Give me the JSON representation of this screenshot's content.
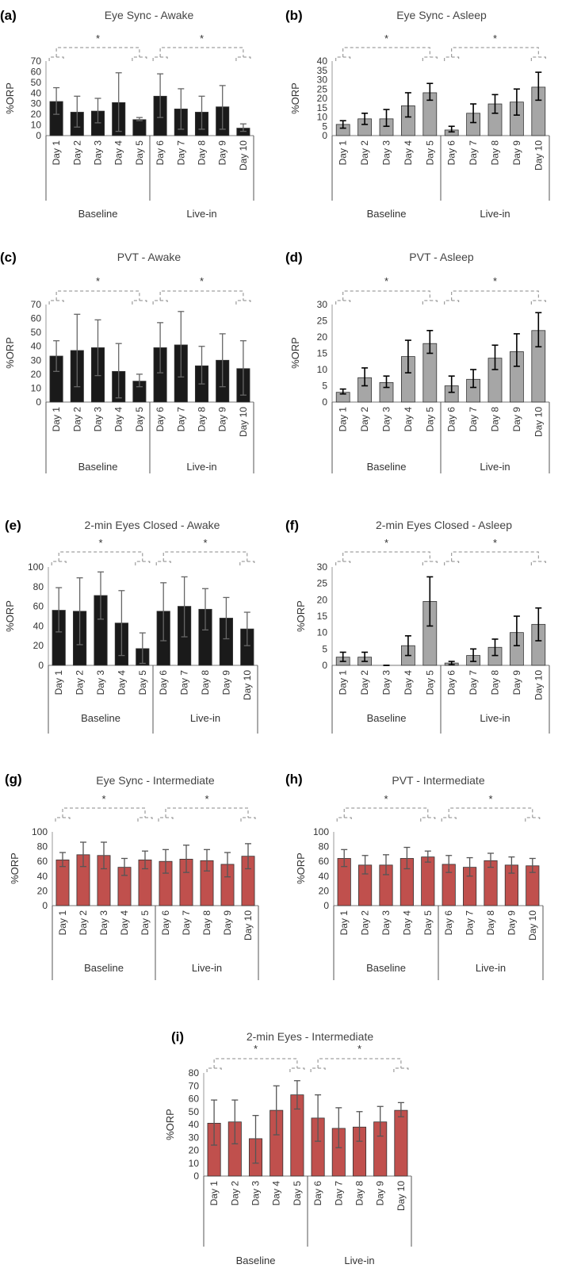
{
  "chart_data": [
    {
      "type": "bar",
      "panel": "(a)",
      "title": "Eye Sync - Awake",
      "ylabel": "%ORP",
      "ylim": [
        0,
        70
      ],
      "yticks": [
        0,
        10,
        20,
        30,
        40,
        50,
        60,
        70
      ],
      "categories": [
        "Day 1",
        "Day 2",
        "Day 3",
        "Day 4",
        "Day 5",
        "Day 6",
        "Day 7",
        "Day 8",
        "Day 9",
        "Day 10"
      ],
      "groups": [
        "Baseline",
        "Live-in"
      ],
      "values": [
        32,
        22,
        23,
        31,
        15,
        37,
        25,
        22,
        27,
        7
      ],
      "err_low": [
        20,
        8,
        12,
        4,
        14,
        17,
        6,
        6,
        6,
        4
      ],
      "err_high": [
        45,
        37,
        35,
        59,
        17,
        58,
        44,
        37,
        47,
        11
      ],
      "bar_color": "#1a1a1a",
      "error_color": "#666666",
      "significance": [
        "*",
        "*"
      ]
    },
    {
      "type": "bar",
      "panel": "(b)",
      "title": "Eye Sync - Asleep",
      "ylabel": "%ORP",
      "ylim": [
        0,
        40
      ],
      "yticks": [
        0,
        5,
        10,
        15,
        20,
        25,
        30,
        35,
        40
      ],
      "categories": [
        "Day 1",
        "Day 2",
        "Day 3",
        "Day 4",
        "Day 5",
        "Day 6",
        "Day 7",
        "Day 8",
        "Day 9",
        "Day 10"
      ],
      "groups": [
        "Baseline",
        "Live-in"
      ],
      "values": [
        6,
        9,
        9,
        16,
        23,
        3,
        12,
        17,
        18,
        26
      ],
      "err_low": [
        4,
        6,
        5,
        10,
        19,
        2,
        7,
        12,
        11,
        19
      ],
      "err_high": [
        8,
        12,
        14,
        23,
        28,
        5,
        17,
        22,
        25,
        34
      ],
      "bar_color": "#a6a6a6",
      "error_color": "#000000",
      "significance": [
        "*",
        "*"
      ]
    },
    {
      "type": "bar",
      "panel": "(c)",
      "title": "PVT - Awake",
      "ylabel": "%ORP",
      "ylim": [
        0,
        70
      ],
      "yticks": [
        0,
        10,
        20,
        30,
        40,
        50,
        60,
        70
      ],
      "categories": [
        "Day 1",
        "Day 2",
        "Day 3",
        "Day 4",
        "Day 5",
        "Day 6",
        "Day 7",
        "Day 8",
        "Day 9",
        "Day 10"
      ],
      "groups": [
        "Baseline",
        "Live-in"
      ],
      "values": [
        33,
        37,
        39,
        22,
        15,
        39,
        41,
        26,
        30,
        24
      ],
      "err_low": [
        22,
        11,
        19,
        3,
        11,
        21,
        18,
        13,
        11,
        5
      ],
      "err_high": [
        44,
        63,
        59,
        42,
        20,
        57,
        65,
        40,
        49,
        44
      ],
      "bar_color": "#1a1a1a",
      "error_color": "#666666",
      "significance": [
        "*",
        "*"
      ]
    },
    {
      "type": "bar",
      "panel": "(d)",
      "title": "PVT - Asleep",
      "ylabel": "%ORP",
      "ylim": [
        0,
        30
      ],
      "yticks": [
        0,
        5,
        10,
        15,
        20,
        25,
        30
      ],
      "categories": [
        "Day 1",
        "Day 2",
        "Day 3",
        "Day 4",
        "Day 5",
        "Day 6",
        "Day 7",
        "Day 8",
        "Day 9",
        "Day 10"
      ],
      "groups": [
        "Baseline",
        "Live-in"
      ],
      "values": [
        3,
        7.5,
        6,
        14,
        18,
        5,
        7,
        13.5,
        15.5,
        22
      ],
      "err_low": [
        2.5,
        5,
        4.5,
        9,
        15,
        3,
        4.5,
        10,
        11,
        17
      ],
      "err_high": [
        4,
        10.5,
        8,
        19,
        22,
        8,
        10,
        17.5,
        21,
        27.5
      ],
      "bar_color": "#a6a6a6",
      "error_color": "#000000",
      "significance": [
        "*",
        "*"
      ]
    },
    {
      "type": "bar",
      "panel": "(e)",
      "title": "2-min Eyes Closed - Awake",
      "ylabel": "%ORP",
      "ylim": [
        0,
        100
      ],
      "yticks": [
        0,
        20,
        40,
        60,
        80,
        100
      ],
      "categories": [
        "Day 1",
        "Day 2",
        "Day 3",
        "Day 4",
        "Day 5",
        "Day 6",
        "Day 7",
        "Day 8",
        "Day 9",
        "Day 10"
      ],
      "groups": [
        "Baseline",
        "Live-in"
      ],
      "values": [
        56,
        55,
        71,
        43,
        17,
        55,
        60,
        57,
        48,
        37
      ],
      "err_low": [
        34,
        21,
        47,
        10,
        2,
        25,
        29,
        36,
        27,
        20
      ],
      "err_high": [
        79,
        89,
        95,
        76,
        33,
        84,
        90,
        78,
        69,
        54
      ],
      "bar_color": "#1a1a1a",
      "error_color": "#666666",
      "significance": [
        "*",
        "*"
      ]
    },
    {
      "type": "bar",
      "panel": "(f)",
      "title": "2-min Eyes Closed - Asleep",
      "ylabel": "%ORP",
      "ylim": [
        0,
        30
      ],
      "yticks": [
        0,
        5,
        10,
        15,
        20,
        25,
        30
      ],
      "categories": [
        "Day 1",
        "Day 2",
        "Day 3",
        "Day 4",
        "Day 5",
        "Day 6",
        "Day 7",
        "Day 8",
        "Day 9",
        "Day 10"
      ],
      "groups": [
        "Baseline",
        "Live-in"
      ],
      "values": [
        2.5,
        2.5,
        0,
        6,
        19.5,
        0.7,
        3,
        5.5,
        10,
        12.5
      ],
      "err_low": [
        1.2,
        1.2,
        0,
        3,
        12,
        0.2,
        1.2,
        3,
        6,
        7.5
      ],
      "err_high": [
        4,
        4,
        0,
        9,
        27,
        1.2,
        5,
        8,
        15,
        17.5
      ],
      "bar_color": "#a6a6a6",
      "error_color": "#000000",
      "significance": [
        "*",
        "*"
      ]
    },
    {
      "type": "bar",
      "panel": "(g)",
      "title": "Eye Sync - Intermediate",
      "ylabel": "%ORP",
      "ylim": [
        0,
        100
      ],
      "yticks": [
        0,
        20,
        40,
        60,
        80,
        100
      ],
      "categories": [
        "Day 1",
        "Day 2",
        "Day 3",
        "Day 4",
        "Day 5",
        "Day 6",
        "Day 7",
        "Day 8",
        "Day 9",
        "Day 10"
      ],
      "groups": [
        "Baseline",
        "Live-in"
      ],
      "values": [
        62,
        69,
        68,
        52,
        62,
        60,
        63,
        61,
        56,
        67
      ],
      "err_low": [
        53,
        53,
        50,
        41,
        50,
        44,
        45,
        47,
        39,
        50
      ],
      "err_high": [
        72,
        86,
        86,
        64,
        74,
        76,
        82,
        76,
        72,
        84
      ],
      "bar_color": "#c0504d",
      "error_color": "#555555",
      "significance": [
        "*",
        "*"
      ]
    },
    {
      "type": "bar",
      "panel": "(h)",
      "title": "PVT - Intermediate",
      "ylabel": "%ORP",
      "ylim": [
        0,
        100
      ],
      "yticks": [
        0,
        20,
        40,
        60,
        80,
        100
      ],
      "categories": [
        "Day 1",
        "Day 2",
        "Day 3",
        "Day 4",
        "Day 5",
        "Day 6",
        "Day 7",
        "Day 8",
        "Day 9",
        "Day 10"
      ],
      "groups": [
        "Baseline",
        "Live-in"
      ],
      "values": [
        64,
        55,
        55,
        64,
        66,
        56,
        52,
        61,
        55,
        54
      ],
      "err_low": [
        53,
        43,
        42,
        50,
        59,
        45,
        40,
        52,
        44,
        45
      ],
      "err_high": [
        76,
        68,
        69,
        79,
        74,
        68,
        65,
        71,
        66,
        64
      ],
      "bar_color": "#c0504d",
      "error_color": "#555555",
      "significance": [
        "*",
        "*"
      ]
    },
    {
      "type": "bar",
      "panel": "(i)",
      "title": "2-min Eyes - Intermediate",
      "ylabel": "%ORP",
      "ylim": [
        0,
        80
      ],
      "yticks": [
        0,
        10,
        20,
        30,
        40,
        50,
        60,
        70,
        80
      ],
      "categories": [
        "Day 1",
        "Day 2",
        "Day 3",
        "Day 4",
        "Day 5",
        "Day 6",
        "Day 7",
        "Day 8",
        "Day 9",
        "Day 10"
      ],
      "groups": [
        "Baseline",
        "Live-in"
      ],
      "values": [
        41,
        42,
        29,
        51,
        63,
        45,
        37,
        38,
        42,
        51
      ],
      "err_low": [
        24,
        25,
        10,
        32,
        52,
        27,
        22,
        27,
        31,
        46
      ],
      "err_high": [
        59,
        59,
        47,
        70,
        74,
        63,
        53,
        50,
        54,
        57
      ],
      "bar_color": "#c0504d",
      "error_color": "#555555",
      "significance": [
        "*",
        "*"
      ]
    }
  ]
}
